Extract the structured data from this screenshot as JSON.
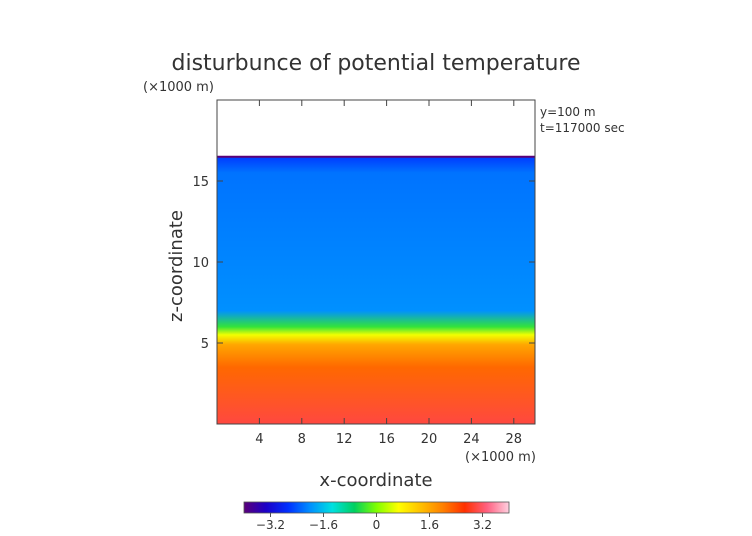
{
  "chart_data": {
    "type": "heatmap",
    "title": "disturbunce of potential temperature",
    "xlabel": "x-coordinate",
    "ylabel": "z-coordinate",
    "x_unit": "(×1000 m)",
    "y_unit": "(×1000 m)",
    "annotations": [
      "y=100 m",
      "t=117000 sec"
    ],
    "xlim": [
      0,
      30
    ],
    "ylim": [
      0,
      20
    ],
    "x_ticks": [
      4,
      8,
      12,
      16,
      20,
      24,
      28
    ],
    "y_ticks": [
      5,
      10,
      15
    ],
    "colorbar": {
      "range": [
        -4,
        4
      ],
      "ticks": [
        -3.2,
        -1.6,
        0,
        1.6,
        3.2
      ],
      "tick_labels": [
        "−3.2",
        "−1.6",
        "0",
        "1.6",
        "3.2"
      ],
      "colors": [
        "#5a0078",
        "#1c00c8",
        "#0030ff",
        "#0090ff",
        "#00e0e0",
        "#00d060",
        "#80ff00",
        "#ffff00",
        "#ffc000",
        "#ff8000",
        "#ff3000",
        "#ff6080",
        "#ffd0e0"
      ]
    },
    "field_summary": {
      "domain_top_km": 16.5,
      "inversion_height_km": 5.5,
      "upper_layer_value": -2.2,
      "lower_layer_value": 2.2,
      "surface_value": 3.0
    }
  }
}
